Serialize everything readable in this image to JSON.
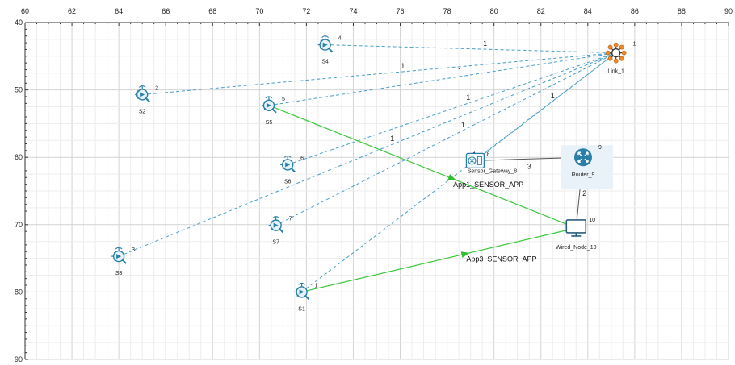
{
  "axes": {
    "x_ticks": [
      "60",
      "62",
      "64",
      "66",
      "68",
      "70",
      "72",
      "74",
      "76",
      "78",
      "80",
      "82",
      "84",
      "86",
      "88",
      "90"
    ],
    "y_ticks": [
      "40",
      "50",
      "60",
      "70",
      "80",
      "90"
    ],
    "xlim": [
      60,
      90
    ],
    "ylim": [
      40,
      90
    ],
    "grid": true
  },
  "colors": {
    "sensor": "#2a7fa8",
    "wireless_link": "#4a9ec9",
    "app_flow": "#3cc83c",
    "wired_link": "#555555",
    "hub_nodes": "#f08a24"
  },
  "nodes": [
    {
      "key": "s1",
      "label": "S1",
      "id": "1",
      "type": "sensor",
      "x": 71.8,
      "y": 80.0
    },
    {
      "key": "s2",
      "label": "S2",
      "id": "2",
      "type": "sensor",
      "x": 65.0,
      "y": 50.7
    },
    {
      "key": "s3",
      "label": "S3",
      "id": "3",
      "type": "sensor",
      "x": 64.0,
      "y": 74.7
    },
    {
      "key": "s4",
      "label": "S4",
      "id": "4",
      "type": "sensor",
      "x": 72.8,
      "y": 43.3
    },
    {
      "key": "s5",
      "label": "S5",
      "id": "5",
      "type": "sensor",
      "x": 70.4,
      "y": 52.3
    },
    {
      "key": "s6",
      "label": "S6",
      "id": "6",
      "type": "sensor",
      "x": 71.2,
      "y": 61.1
    },
    {
      "key": "s7",
      "label": "S7",
      "id": "7",
      "type": "sensor",
      "x": 70.7,
      "y": 70.1
    },
    {
      "key": "gateway",
      "label": "Sensor_Gateway_8",
      "id": "8",
      "type": "gateway",
      "x": 79.2,
      "y": 60.5
    },
    {
      "key": "router",
      "label": "Router_9",
      "id": "9",
      "type": "router",
      "x": 83.8,
      "y": 60.0
    },
    {
      "key": "wired",
      "label": "Wired_Node_10",
      "id": "10",
      "type": "computer",
      "x": 83.5,
      "y": 70.5
    },
    {
      "key": "link1",
      "label": "Link_1",
      "id": "1",
      "type": "hub",
      "x": 85.2,
      "y": 44.5
    }
  ],
  "wireless_links": [
    {
      "from": "s4",
      "label": "1"
    },
    {
      "from": "s2",
      "label": "1"
    },
    {
      "from": "s5",
      "label": "1"
    },
    {
      "from": "s6",
      "label": "1"
    },
    {
      "from": "s3",
      "label": "1"
    },
    {
      "from": "s7",
      "label": "1"
    },
    {
      "from": "s1",
      "label": "1"
    },
    {
      "from": "gateway",
      "label": "1"
    }
  ],
  "wired_links": [
    {
      "from": "gateway",
      "to": "router",
      "label": "3"
    },
    {
      "from": "router",
      "to": "wired",
      "label": "2"
    }
  ],
  "app_flows": [
    {
      "from": "s5",
      "to": "wired",
      "label": "App1_SENSOR_APP"
    },
    {
      "from": "s1",
      "to": "wired",
      "label": "App3_SENSOR_APP"
    }
  ]
}
